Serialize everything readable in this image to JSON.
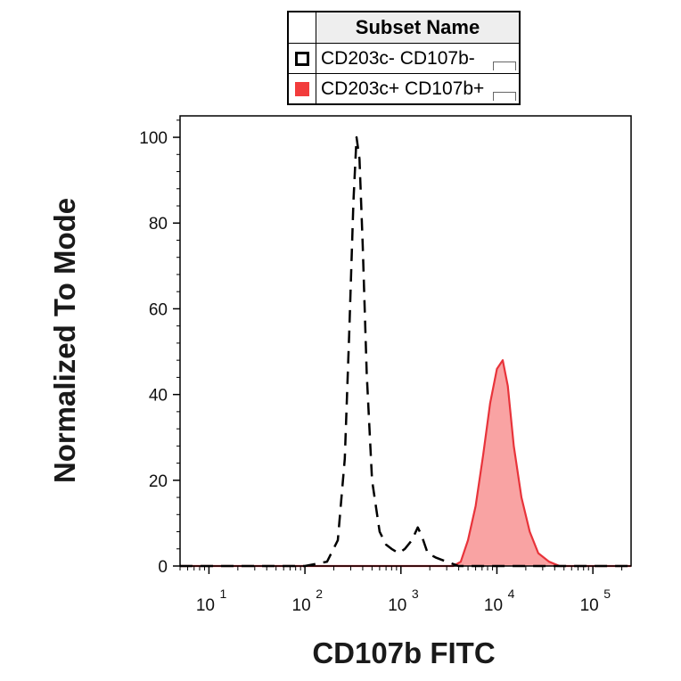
{
  "legend": {
    "header": "Subset Name",
    "entries": [
      {
        "label": "CD203c- CD107b-",
        "style": "dashed-outline",
        "color": "#000000"
      },
      {
        "label": "CD203c+ CD107b+",
        "style": "filled",
        "color": "#f23c3c"
      }
    ]
  },
  "chart_data": {
    "type": "area",
    "xlabel": "CD107b FITC",
    "ylabel": "Normalized To Mode",
    "x_scale": "log",
    "xlim": [
      5,
      250000
    ],
    "ylim": [
      0,
      105
    ],
    "x_ticks": [
      {
        "base": "10",
        "exp": "1",
        "value": 10
      },
      {
        "base": "10",
        "exp": "2",
        "value": 100
      },
      {
        "base": "10",
        "exp": "3",
        "value": 1000
      },
      {
        "base": "10",
        "exp": "4",
        "value": 10000
      },
      {
        "base": "10",
        "exp": "5",
        "value": 100000
      }
    ],
    "y_ticks": [
      0,
      20,
      40,
      60,
      80,
      100
    ],
    "series": [
      {
        "name": "CD203c- CD107b-",
        "line": "dashed",
        "fill": "none",
        "color": "#000000",
        "points": [
          [
            5,
            0
          ],
          [
            100,
            0
          ],
          [
            170,
            1
          ],
          [
            220,
            6
          ],
          [
            260,
            25
          ],
          [
            290,
            55
          ],
          [
            320,
            85
          ],
          [
            345,
            100
          ],
          [
            370,
            95
          ],
          [
            400,
            75
          ],
          [
            440,
            45
          ],
          [
            500,
            20
          ],
          [
            600,
            8
          ],
          [
            700,
            5
          ],
          [
            800,
            4
          ],
          [
            950,
            3
          ],
          [
            1100,
            4
          ],
          [
            1300,
            6
          ],
          [
            1500,
            9
          ],
          [
            1650,
            7
          ],
          [
            1900,
            3
          ],
          [
            2300,
            2
          ],
          [
            3000,
            1
          ],
          [
            4000,
            0
          ],
          [
            250000,
            0
          ]
        ]
      },
      {
        "name": "CD203c+ CD107b+",
        "line": "solid",
        "fill": "#f9a3a3",
        "color": "#e8333a",
        "points": [
          [
            5,
            0
          ],
          [
            3500,
            0
          ],
          [
            4200,
            1
          ],
          [
            5000,
            6
          ],
          [
            6000,
            14
          ],
          [
            7200,
            26
          ],
          [
            8500,
            38
          ],
          [
            10000,
            46
          ],
          [
            11500,
            48
          ],
          [
            13000,
            42
          ],
          [
            15000,
            28
          ],
          [
            18000,
            16
          ],
          [
            22000,
            8
          ],
          [
            27000,
            3
          ],
          [
            35000,
            1
          ],
          [
            45000,
            0
          ],
          [
            250000,
            0
          ]
        ]
      }
    ]
  }
}
